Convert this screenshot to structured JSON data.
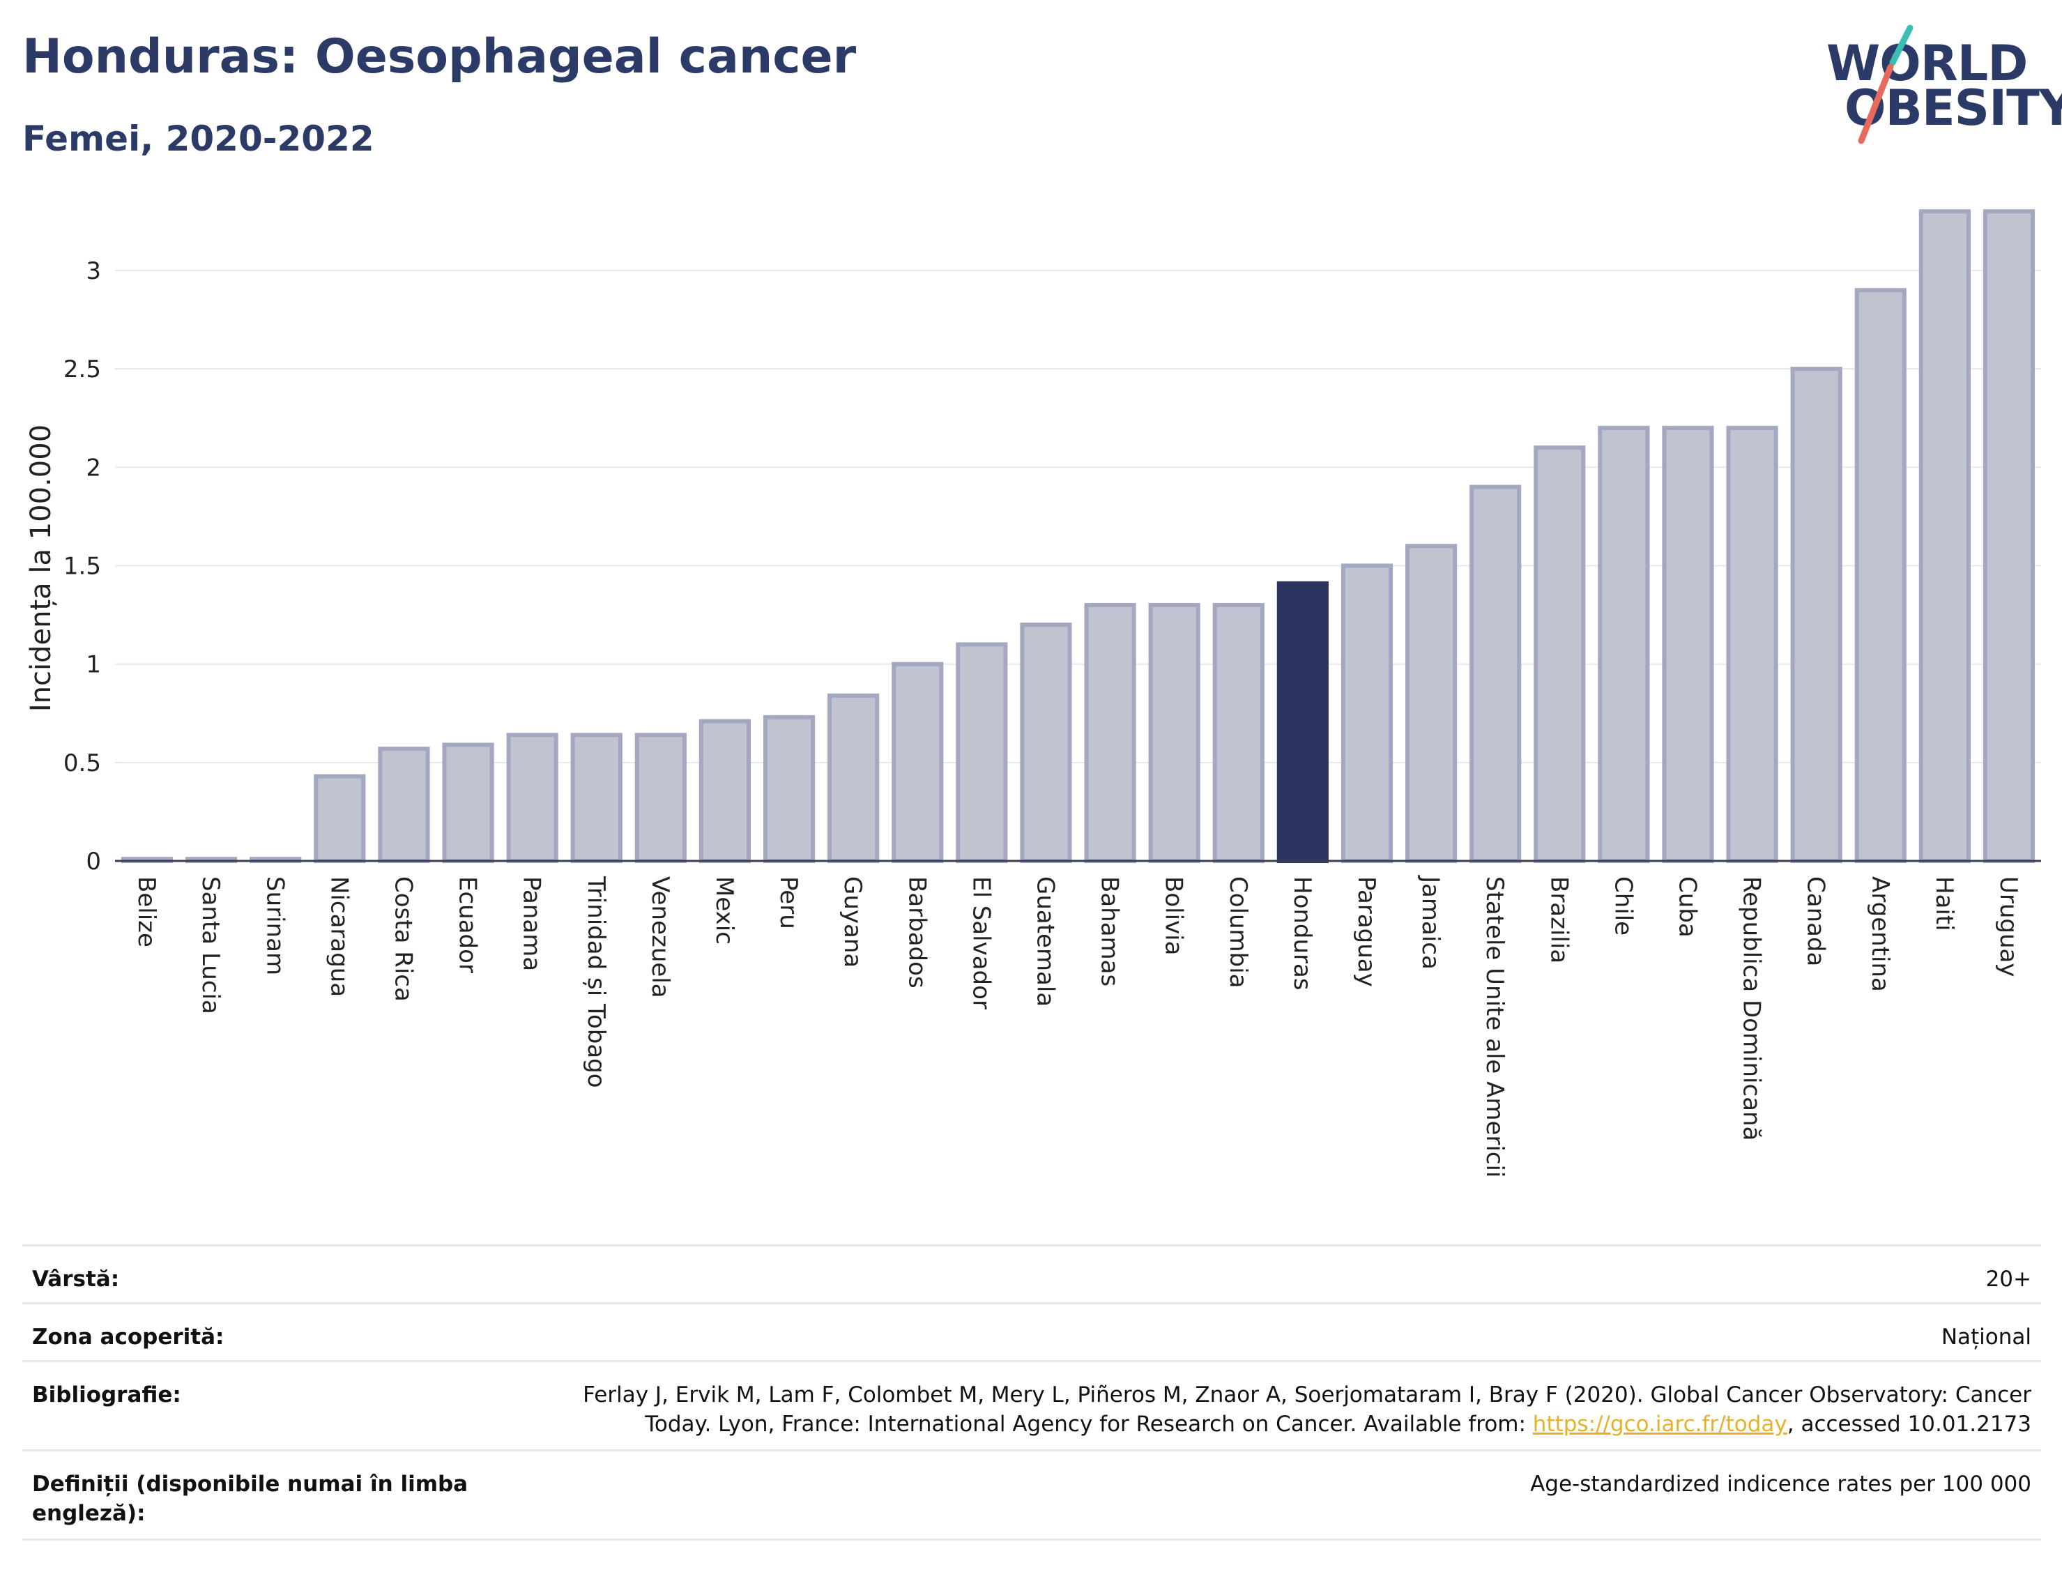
{
  "header": {
    "title": "Honduras: Oesophageal cancer",
    "subtitle": "Femei, 2020-2022"
  },
  "logo": {
    "line1": "WORLD",
    "line2": "OBESITY"
  },
  "colors": {
    "bar": "#c0c3d0",
    "bar_stroke": "#a3a8c0",
    "highlight": "#2b3560",
    "accent_teal": "#3bbfb4",
    "accent_coral": "#e8695e"
  },
  "chart_data": {
    "type": "bar",
    "title": "Honduras: Oesophageal cancer",
    "subtitle": "Femei, 2020-2022",
    "ylabel": "Incidența la 100.000",
    "xlabel": "",
    "ylim": [
      0,
      3.4
    ],
    "yticks": [
      0,
      0.5,
      1,
      1.5,
      2,
      2.5,
      3
    ],
    "ytick_labels": [
      "0",
      "0.5",
      "1",
      "1.5",
      "2",
      "2.5",
      "3"
    ],
    "grid": true,
    "highlight": "Honduras",
    "categories": [
      "Belize",
      "Santa Lucia",
      "Surinam",
      "Nicaragua",
      "Costa Rica",
      "Ecuador",
      "Panama",
      "Trinidad și Tobago",
      "Venezuela",
      "Mexic",
      "Peru",
      "Guyana",
      "Barbados",
      "El Salvador",
      "Guatemala",
      "Bahamas",
      "Bolivia",
      "Columbia",
      "Honduras",
      "Paraguay",
      "Jamaica",
      "Statele Unite ale Americii",
      "Brazilia",
      "Chile",
      "Cuba",
      "Republica Dominicană",
      "Canada",
      "Argentina",
      "Haiti",
      "Uruguay"
    ],
    "values": [
      0.01,
      0.01,
      0.01,
      0.43,
      0.57,
      0.59,
      0.64,
      0.64,
      0.64,
      0.71,
      0.73,
      0.84,
      1.0,
      1.1,
      1.2,
      1.3,
      1.3,
      1.3,
      1.41,
      1.5,
      1.6,
      1.9,
      2.1,
      2.2,
      2.2,
      2.2,
      2.5,
      2.9,
      3.3,
      3.3
    ]
  },
  "info": {
    "age_label": "Vârstă:",
    "age_value": "20+",
    "coverage_label": "Zona acoperită:",
    "coverage_value": "Național",
    "biblio_label": "Bibliografie:",
    "biblio_text_1": "Ferlay J, Ervik M, Lam F, Colombet M, Mery L, Piñeros M, Znaor A, Soerjomataram I, Bray F (2020). Global Cancer Observatory: Cancer Today. Lyon, France: International Agency for Research on Cancer. Available from: ",
    "biblio_link": "https://gco.iarc.fr/today",
    "biblio_text_2": ", accessed 10.01.2173",
    "definitions_label": "Definiții (disponibile numai în limba engleză):",
    "definitions_value": "Age-standardized indicence rates per 100 000"
  }
}
